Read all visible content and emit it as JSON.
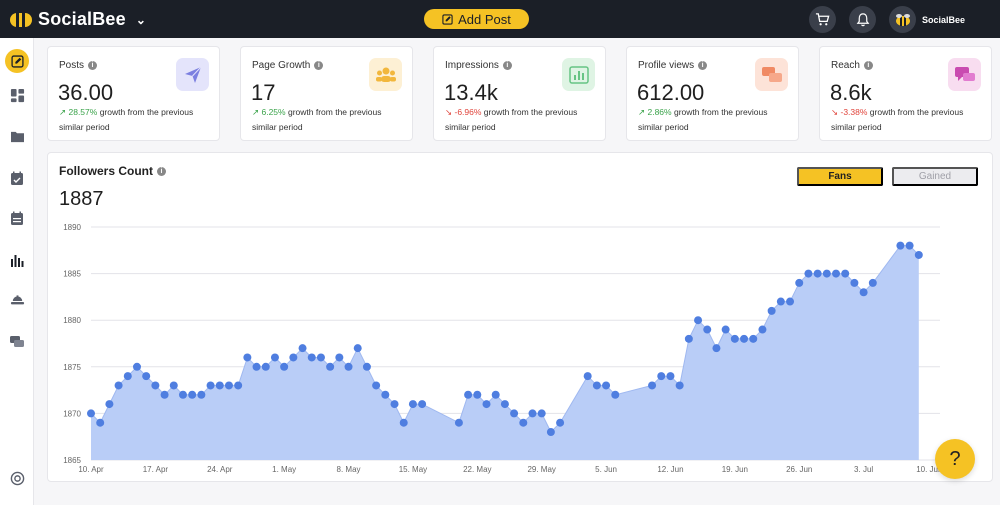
{
  "app": {
    "name": "SocialBee"
  },
  "topbar": {
    "add_post_label": "Add Post",
    "user_name": "SocialBee"
  },
  "colors": {
    "accent": "#f5c224",
    "dark": "#1b1f27",
    "chart_fill": "#b9cdf7",
    "chart_point": "#4f7ee0",
    "up": "#3aa34a",
    "down": "#e0433a"
  },
  "sidebar": {
    "items": [
      {
        "icon": "edit-icon",
        "active": true
      },
      {
        "icon": "dashboard-icon"
      },
      {
        "icon": "folder-icon"
      },
      {
        "icon": "calendar-check-icon"
      },
      {
        "icon": "calendar-icon"
      },
      {
        "icon": "analytics-icon"
      },
      {
        "icon": "inbox-icon"
      },
      {
        "icon": "chat-icon"
      },
      {
        "icon": "help-circle-icon"
      }
    ]
  },
  "cards": [
    {
      "label": "Posts",
      "value": "36.00",
      "change": "28.57%",
      "direction": "up",
      "suffix": "growth from the previous similar period",
      "icon": "paper-plane-icon",
      "icon_bg": "#e4e4fb",
      "icon_color": "#7b7fe0"
    },
    {
      "label": "Page Growth",
      "value": "17",
      "change": "6.25%",
      "direction": "up",
      "suffix": "growth from the previous similar period",
      "icon": "users-icon",
      "icon_bg": "#fdf0d4",
      "icon_color": "#f2b73c"
    },
    {
      "label": "Impressions",
      "value": "13.4k",
      "change": "-6.96%",
      "direction": "down",
      "suffix": "growth from the previous similar period",
      "icon": "bar-chart-icon",
      "icon_bg": "#dff4e4",
      "icon_color": "#67c484"
    },
    {
      "label": "Profile views",
      "value": "612.00",
      "change": "2.86%",
      "direction": "up",
      "suffix": "growth from the previous similar period",
      "icon": "chat-bubbles-icon",
      "icon_bg": "#fde3d8",
      "icon_color": "#f08a64"
    },
    {
      "label": "Reach",
      "value": "8.6k",
      "change": "-3.38%",
      "direction": "down",
      "suffix": "growth from the previous similar period",
      "icon": "message-icon",
      "icon_bg": "#f8ddf0",
      "icon_color": "#c94bb0"
    }
  ],
  "followers": {
    "title": "Followers Count",
    "count": "1887",
    "toggle": {
      "fans": "Fans",
      "gained": "Gained",
      "selected": "Fans"
    }
  },
  "chart_data": {
    "type": "area",
    "title": "Followers Count",
    "x": [
      "2024-04-10",
      "2024-04-11",
      "2024-04-12",
      "2024-04-13",
      "2024-04-14",
      "2024-04-15",
      "2024-04-16",
      "2024-04-17",
      "2024-04-18",
      "2024-04-19",
      "2024-04-20",
      "2024-04-21",
      "2024-04-22",
      "2024-04-23",
      "2024-04-24",
      "2024-04-25",
      "2024-04-26",
      "2024-04-27",
      "2024-04-28",
      "2024-04-29",
      "2024-04-30",
      "2024-05-01",
      "2024-05-02",
      "2024-05-03",
      "2024-05-04",
      "2024-05-05",
      "2024-05-06",
      "2024-05-07",
      "2024-05-08",
      "2024-05-09",
      "2024-05-10",
      "2024-05-11",
      "2024-05-12",
      "2024-05-13",
      "2024-05-14",
      "2024-05-15",
      "2024-05-16",
      "2024-05-20",
      "2024-05-21",
      "2024-05-22",
      "2024-05-23",
      "2024-05-24",
      "2024-05-25",
      "2024-05-26",
      "2024-05-27",
      "2024-05-28",
      "2024-05-29",
      "2024-05-30",
      "2024-05-31",
      "2024-06-03",
      "2024-06-04",
      "2024-06-05",
      "2024-06-06",
      "2024-06-10",
      "2024-06-11",
      "2024-06-12",
      "2024-06-13",
      "2024-06-14",
      "2024-06-15",
      "2024-06-16",
      "2024-06-17",
      "2024-06-18",
      "2024-06-19",
      "2024-06-20",
      "2024-06-21",
      "2024-06-22",
      "2024-06-23",
      "2024-06-24",
      "2024-06-25",
      "2024-06-26",
      "2024-06-27",
      "2024-06-28",
      "2024-06-29",
      "2024-06-30",
      "2024-07-01",
      "2024-07-02",
      "2024-07-03",
      "2024-07-04",
      "2024-07-07",
      "2024-07-08",
      "2024-07-09"
    ],
    "y": [
      1870,
      1869,
      1871,
      1873,
      1874,
      1875,
      1874,
      1873,
      1872,
      1873,
      1872,
      1872,
      1872,
      1873,
      1873,
      1873,
      1873,
      1876,
      1875,
      1875,
      1876,
      1875,
      1876,
      1877,
      1876,
      1876,
      1875,
      1876,
      1875,
      1877,
      1875,
      1873,
      1872,
      1871,
      1869,
      1871,
      1871,
      1869,
      1872,
      1872,
      1871,
      1872,
      1871,
      1870,
      1869,
      1870,
      1870,
      1868,
      1869,
      1874,
      1873,
      1873,
      1872,
      1873,
      1874,
      1874,
      1873,
      1878,
      1880,
      1879,
      1877,
      1879,
      1878,
      1878,
      1878,
      1879,
      1881,
      1882,
      1882,
      1884,
      1885,
      1885,
      1885,
      1885,
      1885,
      1884,
      1883,
      1884,
      1888,
      1888,
      1887
    ],
    "xticks": [
      "10. Apr",
      "17. Apr",
      "24. Apr",
      "1. May",
      "8. May",
      "15. May",
      "22. May",
      "29. May",
      "5. Jun",
      "12. Jun",
      "19. Jun",
      "26. Jun",
      "3. Jul",
      "10. Jul"
    ],
    "yticks": [
      1865,
      1870,
      1875,
      1880,
      1885,
      1890
    ],
    "ylim": [
      1865,
      1890
    ],
    "grid": true,
    "xlabel": "",
    "ylabel": ""
  }
}
